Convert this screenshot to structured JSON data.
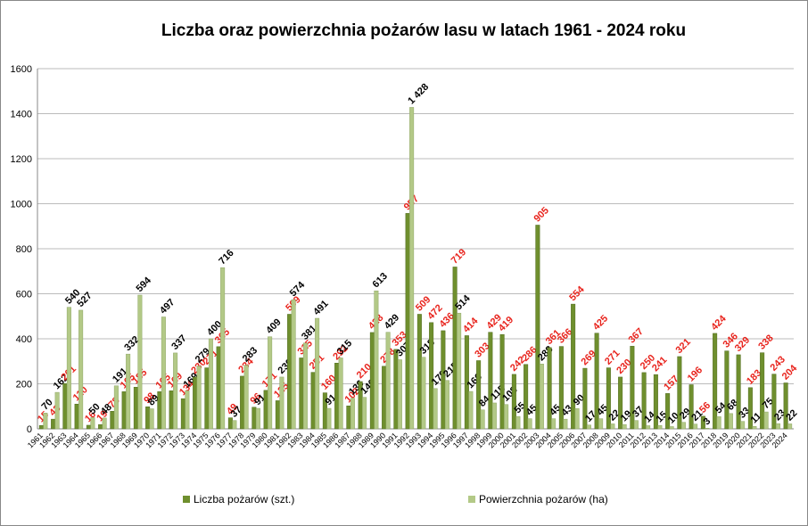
{
  "chart_data": {
    "type": "bar",
    "title": "Liczba oraz powierzchnia pożarów lasu w latach 1961 - 2024 roku",
    "categories": [
      "1961",
      "1962",
      "1963",
      "1964",
      "1965",
      "1966",
      "1967",
      "1968",
      "1969",
      "1970",
      "1971",
      "1972",
      "1973",
      "1974",
      "1975",
      "1976",
      "1977",
      "1978",
      "1979",
      "1980",
      "1981",
      "1982",
      "1983",
      "1984",
      "1985",
      "1986",
      "1987",
      "1988",
      "1989",
      "1990",
      "1991",
      "1992",
      "1993",
      "1994",
      "1995",
      "1996",
      "1997",
      "1998",
      "1999",
      "2000",
      "2001",
      "2002",
      "2003",
      "2004",
      "2005",
      "2006",
      "2007",
      "2008",
      "2009",
      "2010",
      "2011",
      "2012",
      "2013",
      "2014",
      "2015",
      "2016",
      "2017",
      "2018",
      "2019",
      "2020",
      "2021",
      "2022",
      "2023",
      "2024"
    ],
    "series": [
      {
        "name": "Liczba pożarów (szt.)",
        "color": "#6f8f2e",
        "label_color": "#e8231c",
        "values": [
          15,
          43,
          201,
          110,
          16,
          19,
          78,
          165,
          185,
          98,
          165,
          169,
          134,
          230,
          271,
          365,
          49,
          234,
          96,
          171,
          125,
          509,
          315,
          251,
          160,
          292,
          102,
          210,
          428,
          278,
          353,
          957,
          509,
          472,
          436,
          719,
          414,
          303,
          429,
          419,
          242,
          286,
          905,
          361,
          366,
          554,
          269,
          425,
          271,
          230,
          367,
          250,
          241,
          157,
          321,
          196,
          56,
          424,
          346,
          329,
          183,
          338,
          243,
          204
        ]
      },
      {
        "name": "Powierzchnia pożarów (ha)",
        "color": "#b3c987",
        "label_color": "#000000",
        "values": [
          70,
          162,
          540,
          527,
          50,
          48,
          191,
          332,
          594,
          89,
          497,
          337,
          169,
          279,
          400,
          716,
          37,
          283,
          91,
          409,
          230,
          574,
          381,
          491,
          91,
          315,
          136,
          140,
          613,
          429,
          307,
          {
            "v": 1428
          },
          318,
          179,
          215,
          514,
          166,
          84,
          115,
          108,
          55,
          45,
          288,
          45,
          43,
          90,
          17,
          45,
          22,
          19,
          37,
          14,
          15,
          10,
          29,
          21,
          3,
          54,
          68,
          33,
          11,
          75,
          23,
          22
        ],
        "value_labels": {
          "31": "1 428"
        }
      }
    ],
    "ylim": [
      0,
      1600
    ],
    "yticks": [
      0,
      200,
      400,
      600,
      800,
      1000,
      1200,
      1400,
      1600
    ],
    "grid": true,
    "legend": "bottom"
  }
}
